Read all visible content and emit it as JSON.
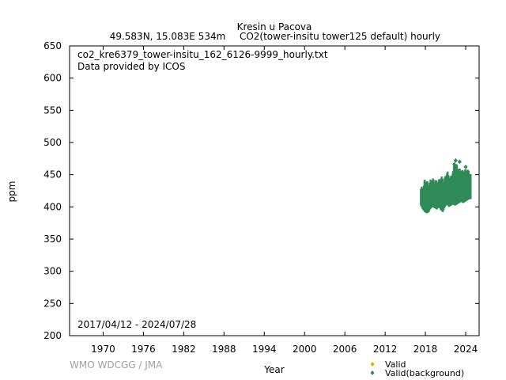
{
  "header": {
    "station": "Kresin u Pacova",
    "location": "49.583N, 15.083E 534m",
    "series_desc": "CO2(tower-insitu tower125 default) hourly"
  },
  "annotations": {
    "filename": "co2_kre6379_tower-insitu_162_6126-9999_hourly.txt",
    "provider": "Data provided by ICOS",
    "date_range": "2017/04/12 - 2024/07/28"
  },
  "footer": {
    "credit": "WMO WDCGG / JMA"
  },
  "colors": {
    "valid": "#e0b000",
    "background": "#2e8b57",
    "axis": "#000000",
    "credit": "#a0a0a0"
  },
  "chart_data": {
    "type": "scatter",
    "xlabel": "Year",
    "ylabel": "ppm",
    "xlim": [
      1965,
      2026
    ],
    "ylim": [
      200,
      650
    ],
    "xticks": [
      1970,
      1976,
      1982,
      1988,
      1994,
      2000,
      2006,
      2012,
      2018,
      2024
    ],
    "yticks": [
      200,
      250,
      300,
      350,
      400,
      450,
      500,
      550,
      600,
      650
    ],
    "grid": false,
    "legend_position": "bottom-right",
    "series": [
      {
        "name": "Valid",
        "marker": "diamond",
        "color": "#e0b000",
        "points": []
      },
      {
        "name": "Valid(background)",
        "marker": "diamond",
        "color": "#2e8b57",
        "bands": [
          {
            "x": 2017.3,
            "low": 402,
            "high": 428
          },
          {
            "x": 2017.6,
            "low": 396,
            "high": 432
          },
          {
            "x": 2017.9,
            "low": 392,
            "high": 438
          },
          {
            "x": 2018.2,
            "low": 390,
            "high": 440
          },
          {
            "x": 2018.5,
            "low": 392,
            "high": 436
          },
          {
            "x": 2018.8,
            "low": 398,
            "high": 438
          },
          {
            "x": 2019.1,
            "low": 400,
            "high": 444
          },
          {
            "x": 2019.4,
            "low": 398,
            "high": 440
          },
          {
            "x": 2019.7,
            "low": 396,
            "high": 436
          },
          {
            "x": 2020.0,
            "low": 400,
            "high": 442
          },
          {
            "x": 2020.3,
            "low": 395,
            "high": 445
          },
          {
            "x": 2020.6,
            "low": 392,
            "high": 440
          },
          {
            "x": 2020.9,
            "low": 400,
            "high": 446
          },
          {
            "x": 2021.2,
            "low": 404,
            "high": 452
          },
          {
            "x": 2021.5,
            "low": 400,
            "high": 448
          },
          {
            "x": 2021.8,
            "low": 402,
            "high": 446
          },
          {
            "x": 2022.1,
            "low": 404,
            "high": 454
          },
          {
            "x": 2022.4,
            "low": 402,
            "high": 470
          },
          {
            "x": 2022.7,
            "low": 404,
            "high": 462
          },
          {
            "x": 2023.0,
            "low": 406,
            "high": 456
          },
          {
            "x": 2023.3,
            "low": 408,
            "high": 460
          },
          {
            "x": 2023.6,
            "low": 406,
            "high": 452
          },
          {
            "x": 2023.9,
            "low": 408,
            "high": 456
          },
          {
            "x": 2024.2,
            "low": 410,
            "high": 460
          },
          {
            "x": 2024.5,
            "low": 412,
            "high": 450
          }
        ],
        "outliers": [
          {
            "x": 2022.5,
            "y": 472
          },
          {
            "x": 2022.3,
            "y": 466
          },
          {
            "x": 2023.1,
            "y": 470
          },
          {
            "x": 2024.0,
            "y": 462
          }
        ]
      }
    ]
  }
}
